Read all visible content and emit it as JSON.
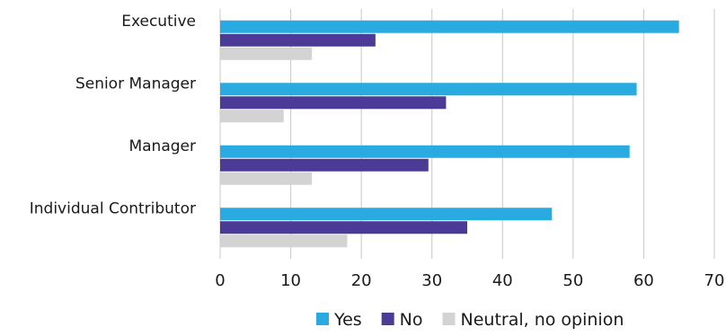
{
  "chart_data": {
    "type": "bar",
    "orientation": "horizontal",
    "categories": [
      "Executive",
      "Senior Manager",
      "Manager",
      "Individual Contributor"
    ],
    "series": [
      {
        "name": "Yes",
        "values": [
          65,
          59,
          58,
          47
        ]
      },
      {
        "name": "No",
        "values": [
          22,
          32,
          29.5,
          35
        ]
      },
      {
        "name": "Neutral, no opinion",
        "values": [
          13,
          9,
          13,
          18
        ]
      }
    ],
    "xlim": [
      0,
      70
    ],
    "xticks": [
      "0",
      "10",
      "20",
      "30",
      "40",
      "50",
      "60",
      "70"
    ],
    "grid": true,
    "legend_position": "bottom",
    "colors": {
      "Yes": "#29abe2",
      "No": "#4b3a96",
      "Neutral, no opinion": "#d3d3d3"
    }
  }
}
